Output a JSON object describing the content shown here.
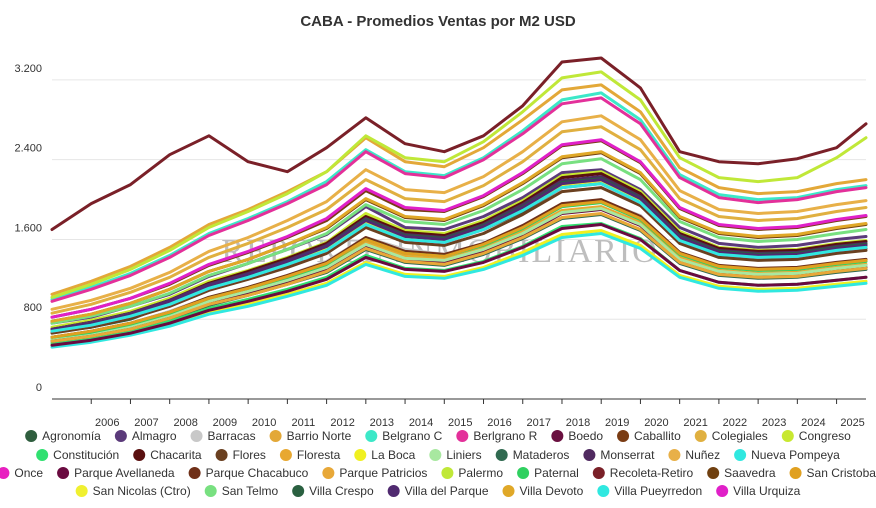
{
  "colors": {
    "background": "#ffffff",
    "grid": "#e6e6e6",
    "text": "#333333"
  },
  "watermark": "REPORTE INMOBILIARIO",
  "chart_data": {
    "type": "line",
    "title": "CABA - Promedios Ventas por M2 USD",
    "xlabel": "",
    "ylabel": "",
    "xlim": [
      2005.0,
      2025.75
    ],
    "ylim": [
      0,
      3500
    ],
    "yticks": [
      0,
      800,
      1600,
      2400,
      3200
    ],
    "ytick_labels": [
      "0",
      "800",
      "1.600",
      "2.400",
      "3.200"
    ],
    "xticks": [
      2006,
      2007,
      2008,
      2009,
      2010,
      2011,
      2012,
      2013,
      2014,
      2015,
      2016,
      2017,
      2018,
      2019,
      2020,
      2021,
      2022,
      2023,
      2024,
      2025
    ],
    "grid": true,
    "legend_position": "bottom",
    "x": [
      2005,
      2006,
      2007,
      2008,
      2009,
      2010,
      2011,
      2012,
      2013,
      2014,
      2015,
      2016,
      2017,
      2018,
      2019,
      2020,
      2021,
      2022,
      2023,
      2024,
      2025,
      2025.75
    ],
    "series": [
      {
        "name": "Agronomía",
        "color": "#2f5e3e",
        "values": [
          680,
          720,
          800,
          950,
          1120,
          1230,
          1340,
          1470,
          1780,
          1620,
          1580,
          1700,
          1880,
          2120,
          2180,
          1980,
          1580,
          1430,
          1400,
          1420,
          1480,
          1510
        ]
      },
      {
        "name": "Almagro",
        "color": "#5b3a7a",
        "values": [
          760,
          820,
          930,
          1050,
          1230,
          1360,
          1500,
          1650,
          1930,
          1720,
          1700,
          1830,
          2020,
          2270,
          2300,
          2100,
          1720,
          1560,
          1520,
          1540,
          1600,
          1630
        ]
      },
      {
        "name": "Barracas",
        "color": "#c8c8c8",
        "values": [
          620,
          680,
          760,
          880,
          1020,
          1120,
          1240,
          1380,
          1620,
          1500,
          1450,
          1550,
          1720,
          1930,
          1990,
          1840,
          1460,
          1320,
          1290,
          1300,
          1350,
          1380
        ]
      },
      {
        "name": "Barrio Norte",
        "color": "#e3a838",
        "values": [
          1050,
          1180,
          1330,
          1520,
          1750,
          1900,
          2080,
          2280,
          2620,
          2380,
          2330,
          2520,
          2800,
          3100,
          3150,
          2880,
          2320,
          2120,
          2060,
          2080,
          2160,
          2200
        ]
      },
      {
        "name": "Belgrano C",
        "color": "#3ce8c8",
        "values": [
          1000,
          1120,
          1260,
          1440,
          1660,
          1810,
          1980,
          2180,
          2500,
          2280,
          2240,
          2420,
          2690,
          3000,
          3070,
          2800,
          2250,
          2050,
          2000,
          2020,
          2100,
          2140
        ]
      },
      {
        "name": "Berlgrano R",
        "color": "#e3309a",
        "values": [
          980,
          1100,
          1240,
          1420,
          1640,
          1790,
          1960,
          2150,
          2480,
          2260,
          2220,
          2400,
          2660,
          2960,
          3020,
          2760,
          2220,
          2020,
          1970,
          2000,
          2080,
          2120
        ]
      },
      {
        "name": "Boedo",
        "color": "#6a1040",
        "values": [
          580,
          630,
          700,
          810,
          950,
          1060,
          1170,
          1300,
          1540,
          1400,
          1380,
          1480,
          1640,
          1860,
          1900,
          1740,
          1390,
          1260,
          1230,
          1240,
          1290,
          1320
        ]
      },
      {
        "name": "Caballito",
        "color": "#7a3c14",
        "values": [
          820,
          900,
          1010,
          1150,
          1340,
          1470,
          1620,
          1790,
          2090,
          1900,
          1880,
          2030,
          2260,
          2540,
          2590,
          2370,
          1910,
          1740,
          1700,
          1720,
          1790,
          1830
        ]
      },
      {
        "name": "Colegiales",
        "color": "#e0b040",
        "values": [
          860,
          950,
          1070,
          1220,
          1420,
          1560,
          1720,
          1900,
          2200,
          2010,
          1980,
          2140,
          2380,
          2680,
          2730,
          2500,
          2010,
          1830,
          1790,
          1810,
          1880,
          1920
        ]
      },
      {
        "name": "Congreso",
        "color": "#c8e830",
        "values": [
          720,
          790,
          880,
          1010,
          1180,
          1290,
          1420,
          1570,
          1860,
          1690,
          1660,
          1790,
          1990,
          2240,
          2280,
          2080,
          1680,
          1520,
          1490,
          1500,
          1560,
          1590
        ]
      },
      {
        "name": "Constitución",
        "color": "#30e070",
        "values": [
          560,
          610,
          680,
          780,
          910,
          1000,
          1100,
          1220,
          1440,
          1310,
          1290,
          1380,
          1530,
          1730,
          1760,
          1610,
          1290,
          1170,
          1140,
          1150,
          1190,
          1220
        ]
      },
      {
        "name": "Chacarita",
        "color": "#5a1010",
        "values": [
          700,
          770,
          860,
          990,
          1160,
          1280,
          1410,
          1560,
          1830,
          1670,
          1640,
          1770,
          1970,
          2220,
          2260,
          2060,
          1660,
          1510,
          1480,
          1490,
          1550,
          1580
        ]
      },
      {
        "name": "Flores",
        "color": "#6a4020",
        "values": [
          660,
          720,
          810,
          930,
          1090,
          1200,
          1320,
          1460,
          1720,
          1570,
          1540,
          1660,
          1850,
          2080,
          2120,
          1940,
          1560,
          1420,
          1390,
          1400,
          1460,
          1490
        ]
      },
      {
        "name": "Floresta",
        "color": "#e8a830",
        "values": [
          600,
          660,
          740,
          850,
          990,
          1090,
          1200,
          1330,
          1570,
          1430,
          1400,
          1510,
          1680,
          1890,
          1930,
          1770,
          1420,
          1290,
          1260,
          1270,
          1320,
          1350
        ]
      },
      {
        "name": "La Boca",
        "color": "#f0f020",
        "values": [
          540,
          580,
          650,
          740,
          870,
          950,
          1050,
          1160,
          1370,
          1250,
          1230,
          1320,
          1470,
          1650,
          1690,
          1540,
          1240,
          1130,
          1100,
          1110,
          1150,
          1180
        ]
      },
      {
        "name": "Liniers",
        "color": "#a8e8a0",
        "values": [
          600,
          650,
          730,
          840,
          980,
          1080,
          1190,
          1320,
          1550,
          1410,
          1390,
          1500,
          1660,
          1870,
          1910,
          1750,
          1400,
          1280,
          1250,
          1260,
          1310,
          1340
        ]
      },
      {
        "name": "Mataderos",
        "color": "#306a50",
        "values": [
          580,
          630,
          700,
          810,
          940,
          1040,
          1150,
          1270,
          1500,
          1370,
          1340,
          1450,
          1610,
          1810,
          1850,
          1690,
          1360,
          1240,
          1210,
          1220,
          1270,
          1300
        ]
      },
      {
        "name": "Monserrat",
        "color": "#502a60",
        "values": [
          700,
          770,
          860,
          990,
          1150,
          1260,
          1390,
          1540,
          1810,
          1650,
          1620,
          1750,
          1950,
          2190,
          2230,
          2030,
          1640,
          1490,
          1460,
          1470,
          1530,
          1560
        ]
      },
      {
        "name": "Nuñez",
        "color": "#e8b048",
        "values": [
          900,
          990,
          1110,
          1270,
          1480,
          1620,
          1790,
          1980,
          2300,
          2100,
          2070,
          2230,
          2480,
          2780,
          2840,
          2600,
          2090,
          1900,
          1860,
          1880,
          1950,
          1990
        ]
      },
      {
        "name": "Nueva Pompeya",
        "color": "#30e8e0",
        "values": [
          520,
          570,
          640,
          730,
          850,
          930,
          1030,
          1140,
          1350,
          1230,
          1210,
          1300,
          1440,
          1620,
          1660,
          1510,
          1220,
          1110,
          1080,
          1090,
          1130,
          1160
        ]
      },
      {
        "name": "Once",
        "color": "#e820c0",
        "values": [
          680,
          740,
          830,
          950,
          1110,
          1220,
          1350,
          1490,
          1760,
          1600,
          1570,
          1700,
          1890,
          2120,
          2160,
          1970,
          1590,
          1450,
          1420,
          1430,
          1490,
          1520
        ]
      },
      {
        "name": "Parque Avellaneda",
        "color": "#6a0a40",
        "values": [
          540,
          590,
          660,
          760,
          890,
          980,
          1080,
          1200,
          1420,
          1300,
          1280,
          1370,
          1520,
          1710,
          1750,
          1600,
          1290,
          1170,
          1140,
          1150,
          1190,
          1220
        ]
      },
      {
        "name": "Parque Chacabuco",
        "color": "#703018",
        "values": [
          620,
          680,
          760,
          870,
          1020,
          1120,
          1240,
          1370,
          1620,
          1480,
          1450,
          1560,
          1740,
          1960,
          2000,
          1830,
          1470,
          1340,
          1310,
          1320,
          1370,
          1400
        ]
      },
      {
        "name": "Parque Patricios",
        "color": "#e8a838",
        "values": [
          580,
          630,
          700,
          810,
          950,
          1040,
          1150,
          1280,
          1510,
          1380,
          1350,
          1460,
          1620,
          1820,
          1860,
          1700,
          1370,
          1250,
          1220,
          1230,
          1280,
          1310
        ]
      },
      {
        "name": "Palermo",
        "color": "#c0e838",
        "values": [
          1020,
          1150,
          1300,
          1490,
          1720,
          1880,
          2060,
          2280,
          2640,
          2420,
          2380,
          2580,
          2880,
          3220,
          3280,
          3000,
          2420,
          2220,
          2180,
          2220,
          2420,
          2620
        ]
      },
      {
        "name": "Paternal",
        "color": "#30d060",
        "values": [
          620,
          670,
          750,
          860,
          1010,
          1110,
          1220,
          1350,
          1600,
          1460,
          1430,
          1540,
          1710,
          1930,
          1970,
          1800,
          1450,
          1320,
          1290,
          1300,
          1350,
          1380
        ]
      },
      {
        "name": "Recoleta-Retiro",
        "color": "#7a2028",
        "values": [
          1700,
          1960,
          2150,
          2450,
          2640,
          2380,
          2280,
          2520,
          2820,
          2560,
          2480,
          2640,
          2940,
          3380,
          3420,
          3120,
          2480,
          2380,
          2360,
          2410,
          2520,
          2760
        ]
      },
      {
        "name": "Saavedra",
        "color": "#704010",
        "values": [
          780,
          850,
          960,
          1100,
          1280,
          1400,
          1550,
          1710,
          2000,
          1820,
          1790,
          1940,
          2160,
          2420,
          2470,
          2260,
          1820,
          1660,
          1620,
          1640,
          1710,
          1750
        ]
      },
      {
        "name": "San Cristobal",
        "color": "#e0a020",
        "values": [
          620,
          680,
          760,
          870,
          1010,
          1110,
          1230,
          1360,
          1600,
          1460,
          1430,
          1550,
          1720,
          1940,
          1980,
          1810,
          1460,
          1330,
          1300,
          1310,
          1360,
          1390
        ]
      },
      {
        "name": "San Nicolas (Ctro)",
        "color": "#f0f030",
        "values": [
          700,
          760,
          850,
          970,
          1130,
          1240,
          1370,
          1510,
          1780,
          1620,
          1590,
          1720,
          1910,
          2150,
          2190,
          2000,
          1610,
          1460,
          1430,
          1440,
          1500,
          1530
        ]
      },
      {
        "name": "San Telmo",
        "color": "#78e080",
        "values": [
          760,
          830,
          930,
          1060,
          1240,
          1360,
          1500,
          1660,
          1950,
          1780,
          1750,
          1890,
          2100,
          2360,
          2410,
          2200,
          1780,
          1620,
          1580,
          1600,
          1660,
          1700
        ]
      },
      {
        "name": "Villa Crespo",
        "color": "#2a6040",
        "values": [
          700,
          760,
          850,
          970,
          1140,
          1250,
          1380,
          1530,
          1800,
          1640,
          1610,
          1740,
          1930,
          2170,
          2210,
          2020,
          1630,
          1480,
          1450,
          1460,
          1520,
          1550
        ]
      },
      {
        "name": "Villa del Parque",
        "color": "#502a70",
        "values": [
          700,
          760,
          850,
          980,
          1140,
          1250,
          1380,
          1530,
          1790,
          1630,
          1600,
          1730,
          1920,
          2160,
          2200,
          2010,
          1620,
          1470,
          1440,
          1450,
          1510,
          1540
        ]
      },
      {
        "name": "Villa Devoto",
        "color": "#e0a828",
        "values": [
          780,
          850,
          960,
          1100,
          1280,
          1400,
          1550,
          1720,
          2010,
          1830,
          1800,
          1950,
          2170,
          2430,
          2480,
          2270,
          1830,
          1670,
          1630,
          1650,
          1720,
          1760
        ]
      },
      {
        "name": "Villa Pueyrredon",
        "color": "#30e8e0",
        "values": [
          680,
          740,
          830,
          950,
          1110,
          1220,
          1350,
          1490,
          1750,
          1600,
          1570,
          1700,
          1890,
          2120,
          2160,
          1970,
          1590,
          1450,
          1420,
          1430,
          1490,
          1520
        ]
      },
      {
        "name": "Villa Urquiza",
        "color": "#e020c8",
        "values": [
          820,
          900,
          1010,
          1160,
          1350,
          1480,
          1630,
          1810,
          2110,
          1920,
          1890,
          2040,
          2270,
          2550,
          2600,
          2380,
          1920,
          1750,
          1710,
          1730,
          1800,
          1840
        ]
      }
    ]
  }
}
